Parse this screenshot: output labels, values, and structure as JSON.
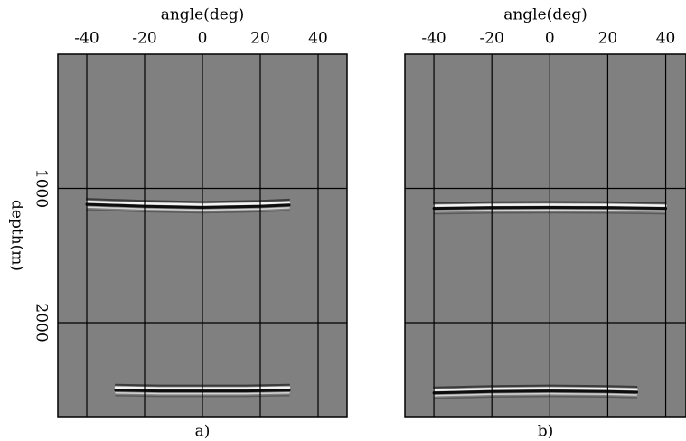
{
  "chart_data": [
    {
      "type": "seismic",
      "xlabel": "angle(deg)",
      "ylabel": "depth(m)",
      "caption": "a)",
      "xlim": [
        -50,
        50
      ],
      "xticks": [
        -40,
        -20,
        0,
        20,
        40
      ],
      "ylim": [
        0,
        2700
      ],
      "yticks": [
        1000,
        2000
      ],
      "ytick_labels": true,
      "background": "#808080",
      "grid_color": "#000000",
      "series": [
        {
          "x": [
            -40,
            -20,
            0,
            20,
            30
          ],
          "values": [
            1105,
            1120,
            1128,
            1120,
            1110
          ]
        },
        {
          "x": [
            -30,
            -15,
            0,
            15,
            30
          ],
          "values": [
            2490,
            2495,
            2495,
            2495,
            2490
          ]
        }
      ]
    },
    {
      "type": "seismic",
      "xlabel": "angle(deg)",
      "caption": "b)",
      "xlim": [
        -50,
        47
      ],
      "xticks": [
        -40,
        -20,
        0,
        20,
        40
      ],
      "ylim": [
        0,
        2700
      ],
      "yticks": [
        1000,
        2000
      ],
      "ytick_labels": false,
      "background": "#808080",
      "grid_color": "#000000",
      "series": [
        {
          "x": [
            -40,
            -20,
            0,
            20,
            40
          ],
          "values": [
            1135,
            1130,
            1128,
            1130,
            1135
          ]
        },
        {
          "x": [
            -40,
            -20,
            0,
            20,
            30
          ],
          "values": [
            2510,
            2500,
            2495,
            2500,
            2505
          ]
        }
      ]
    }
  ]
}
